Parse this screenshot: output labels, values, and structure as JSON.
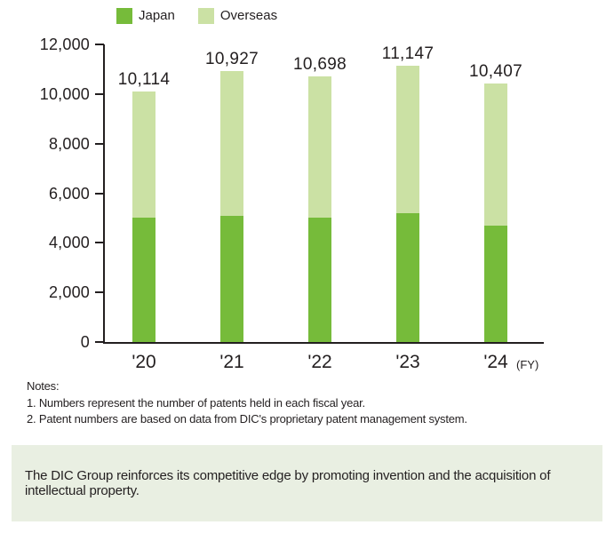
{
  "legend": {
    "items": [
      {
        "label": "Japan",
        "color": "#76bb3a"
      },
      {
        "label": "Overseas",
        "color": "#cbe1a4"
      }
    ]
  },
  "chart_data": {
    "type": "bar",
    "stacked": true,
    "categories": [
      "'20",
      "'21",
      "'22",
      "'23",
      "'24"
    ],
    "series": [
      {
        "name": "Japan",
        "color": "#76bb3a",
        "values": [
          5000,
          5100,
          5000,
          5200,
          4700
        ]
      },
      {
        "name": "Overseas",
        "color": "#cbe1a4",
        "values": [
          5114,
          5827,
          5698,
          5947,
          5707
        ]
      }
    ],
    "series_values_estimated": true,
    "totals": [
      10114,
      10927,
      10698,
      11147,
      10407
    ],
    "total_labels": [
      "10,114",
      "10,927",
      "10,698",
      "11,147",
      "10,407"
    ],
    "x_suffix": "(FY)",
    "ylim": [
      0,
      12000
    ],
    "ytick_step": 2000,
    "ytick_labels": [
      "0",
      "2,000",
      "4,000",
      "6,000",
      "8,000",
      "10,000",
      "12,000"
    ],
    "legend_position": "top",
    "grid": false
  },
  "notes": {
    "title": "Notes:",
    "lines": [
      "1. Numbers represent the number of patents held in each fiscal year.",
      "2. Patent numbers are based on data from DIC's proprietary patent management system."
    ]
  },
  "callout": {
    "text": "The DIC Group reinforces its competitive edge by promoting invention and the acquisition of intellectual property.",
    "background": "#e9efe2"
  },
  "colors": {
    "text": "#231f20",
    "axis": "#231f20"
  }
}
